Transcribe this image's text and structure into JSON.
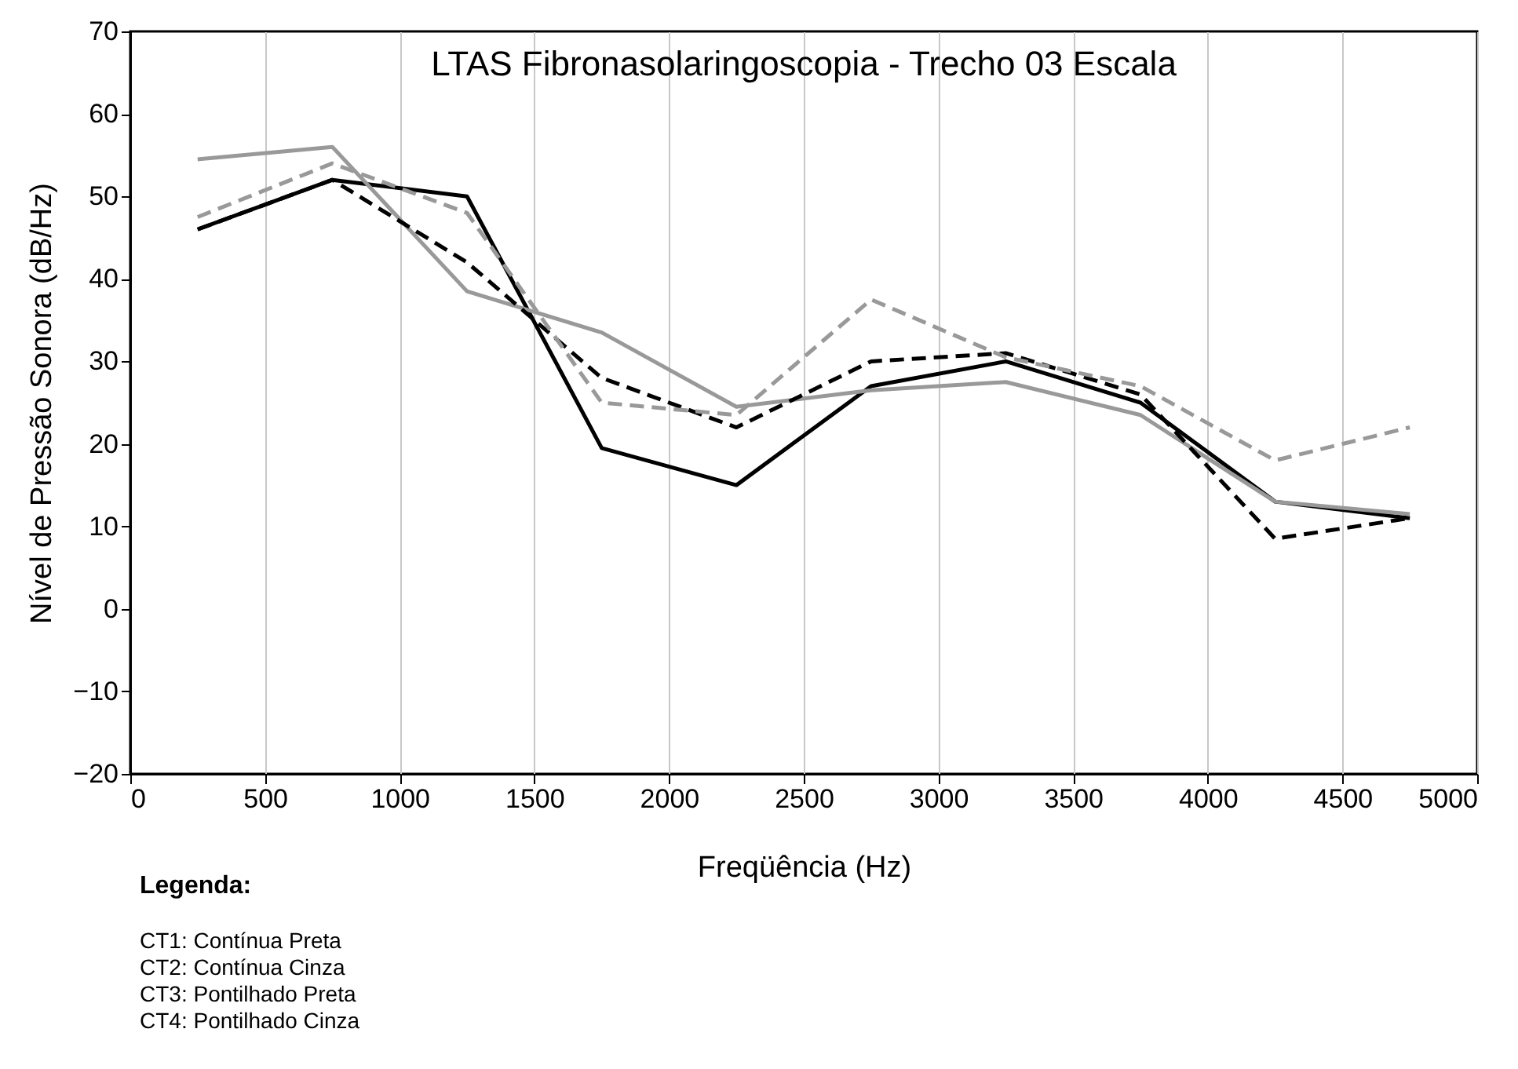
{
  "chart_data": {
    "type": "line",
    "title": "LTAS Fibronasolaringoscopia - Trecho 03 Escala",
    "xlabel": "Freqüência (Hz)",
    "ylabel": "Nível de Pressão Sonora (dB/Hz)",
    "x": [
      250,
      750,
      1250,
      1750,
      2250,
      2750,
      3250,
      3750,
      4250,
      4750
    ],
    "series": [
      {
        "color": "#000000",
        "line_style": "solid",
        "values": [
          46,
          52,
          50,
          19.5,
          15,
          27,
          30,
          25,
          13,
          11
        ]
      },
      {
        "color": "#999999",
        "line_style": "solid",
        "values": [
          54.5,
          56,
          38.5,
          33.5,
          24.5,
          26.5,
          27.5,
          23.5,
          13,
          11.5
        ]
      },
      {
        "color": "#000000",
        "line_style": "dashed",
        "values": [
          46,
          52,
          42,
          28,
          22,
          30,
          31,
          26,
          8.5,
          11
        ]
      },
      {
        "color": "#999999",
        "line_style": "dashed",
        "values": [
          47.5,
          54,
          48,
          25,
          23.5,
          37.5,
          30.5,
          27,
          18,
          22
        ]
      }
    ],
    "xlim": [
      0,
      5000
    ],
    "xticks": [
      0,
      500,
      1000,
      1500,
      2000,
      2500,
      3000,
      3500,
      4000,
      4500,
      5000
    ],
    "ylim": [
      -20,
      70
    ],
    "yticks": [
      -20,
      -10,
      0,
      10,
      20,
      30,
      40,
      50,
      60,
      70
    ],
    "grid": "x",
    "annotations": [
      "Legenda:",
      "CT1: Contínua Preta",
      "CT2: Contínua Cinza",
      "CT3: Pontilhado Preta",
      "CT4: Pontilhado Cinza"
    ]
  }
}
